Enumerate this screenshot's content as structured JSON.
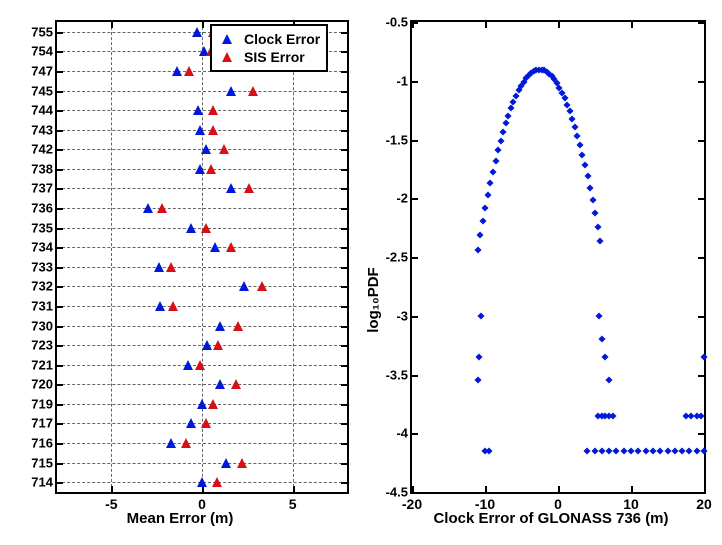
{
  "colors": {
    "clock": "#0018da",
    "sis": "#d71016",
    "axis": "#000000",
    "bg": "#ffffff"
  },
  "left": {
    "xlabel": "Mean Error (m)",
    "xlim": [
      -8,
      8
    ],
    "xticks": [
      -5,
      0,
      5
    ],
    "categories": [
      "755",
      "754",
      "747",
      "745",
      "744",
      "743",
      "742",
      "738",
      "737",
      "736",
      "735",
      "734",
      "733",
      "732",
      "731",
      "730",
      "723",
      "721",
      "720",
      "719",
      "717",
      "716",
      "715",
      "714"
    ],
    "legend": {
      "clock": "Clock Error",
      "sis": "SIS Error"
    },
    "points": [
      {
        "sat": "755",
        "clock": -0.3,
        "sis": 0.6
      },
      {
        "sat": "754",
        "clock": 0.1,
        "sis": 0.5
      },
      {
        "sat": "747",
        "clock": -1.4,
        "sis": -0.7
      },
      {
        "sat": "745",
        "clock": 1.6,
        "sis": 2.8
      },
      {
        "sat": "744",
        "clock": -0.2,
        "sis": 0.6
      },
      {
        "sat": "743",
        "clock": -0.1,
        "sis": 0.6
      },
      {
        "sat": "742",
        "clock": 0.2,
        "sis": 1.2
      },
      {
        "sat": "738",
        "clock": -0.1,
        "sis": 0.5
      },
      {
        "sat": "737",
        "clock": 1.6,
        "sis": 2.6
      },
      {
        "sat": "736",
        "clock": -3.0,
        "sis": -2.2
      },
      {
        "sat": "735",
        "clock": -0.6,
        "sis": 0.2
      },
      {
        "sat": "734",
        "clock": 0.7,
        "sis": 1.6
      },
      {
        "sat": "733",
        "clock": -2.4,
        "sis": -1.7
      },
      {
        "sat": "732",
        "clock": 2.3,
        "sis": 3.3
      },
      {
        "sat": "731",
        "clock": -2.3,
        "sis": -1.6
      },
      {
        "sat": "730",
        "clock": 1.0,
        "sis": 2.0
      },
      {
        "sat": "723",
        "clock": 0.3,
        "sis": 0.9
      },
      {
        "sat": "721",
        "clock": -0.8,
        "sis": -0.1
      },
      {
        "sat": "720",
        "clock": 1.0,
        "sis": 1.9
      },
      {
        "sat": "719",
        "clock": 0.0,
        "sis": 0.6
      },
      {
        "sat": "717",
        "clock": -0.6,
        "sis": 0.2
      },
      {
        "sat": "716",
        "clock": -1.7,
        "sis": -0.9
      },
      {
        "sat": "715",
        "clock": 1.3,
        "sis": 2.2
      },
      {
        "sat": "714",
        "clock": 0.0,
        "sis": 0.8
      }
    ]
  },
  "right": {
    "xlabel": "Clock Error of GLONASS 736 (m)",
    "ylabel": "log₁₀PDF",
    "xlim": [
      -20,
      20
    ],
    "ylim": [
      -4.5,
      -0.5
    ],
    "xticks": [
      -20,
      -10,
      0,
      10,
      20
    ],
    "yticks": [
      -4.5,
      -4,
      -3.5,
      -3,
      -2.5,
      -2,
      -1.5,
      -1,
      -0.5
    ],
    "pdf_curve": {
      "mu": -2.5,
      "sigma": 3.2,
      "xstep": 0.35,
      "xmin": -11.0,
      "xmax": 6.0
    },
    "tail_points": [
      {
        "x": -10.5,
        "y": -3.0
      },
      {
        "x": -10.8,
        "y": -3.35
      },
      {
        "x": -11.0,
        "y": -3.55
      },
      {
        "x": -10.0,
        "y": -4.15
      },
      {
        "x": -9.4,
        "y": -4.15
      },
      {
        "x": 5.6,
        "y": -3.0
      },
      {
        "x": 6.0,
        "y": -3.2
      },
      {
        "x": 6.4,
        "y": -3.35
      },
      {
        "x": 7.0,
        "y": -3.55
      },
      {
        "x": 5.5,
        "y": -3.85
      },
      {
        "x": 6.0,
        "y": -3.85
      },
      {
        "x": 6.5,
        "y": -3.85
      },
      {
        "x": 7.0,
        "y": -3.85
      },
      {
        "x": 7.5,
        "y": -3.85
      },
      {
        "x": 4.0,
        "y": -4.15
      },
      {
        "x": 5.0,
        "y": -4.15
      },
      {
        "x": 6.0,
        "y": -4.15
      },
      {
        "x": 7.0,
        "y": -4.15
      },
      {
        "x": 8.0,
        "y": -4.15
      },
      {
        "x": 9.0,
        "y": -4.15
      },
      {
        "x": 10.0,
        "y": -4.15
      },
      {
        "x": 11.0,
        "y": -4.15
      },
      {
        "x": 12.0,
        "y": -4.15
      },
      {
        "x": 13.0,
        "y": -4.15
      },
      {
        "x": 14.0,
        "y": -4.15
      },
      {
        "x": 15.0,
        "y": -4.15
      },
      {
        "x": 16.0,
        "y": -4.15
      },
      {
        "x": 17.0,
        "y": -4.15
      },
      {
        "x": 18.0,
        "y": -4.15
      },
      {
        "x": 19.0,
        "y": -4.15
      },
      {
        "x": 20.0,
        "y": -4.15
      },
      {
        "x": 17.5,
        "y": -3.85
      },
      {
        "x": 18.2,
        "y": -3.85
      },
      {
        "x": 19.0,
        "y": -3.85
      },
      {
        "x": 19.6,
        "y": -3.85
      },
      {
        "x": 20.0,
        "y": -3.35
      }
    ]
  }
}
